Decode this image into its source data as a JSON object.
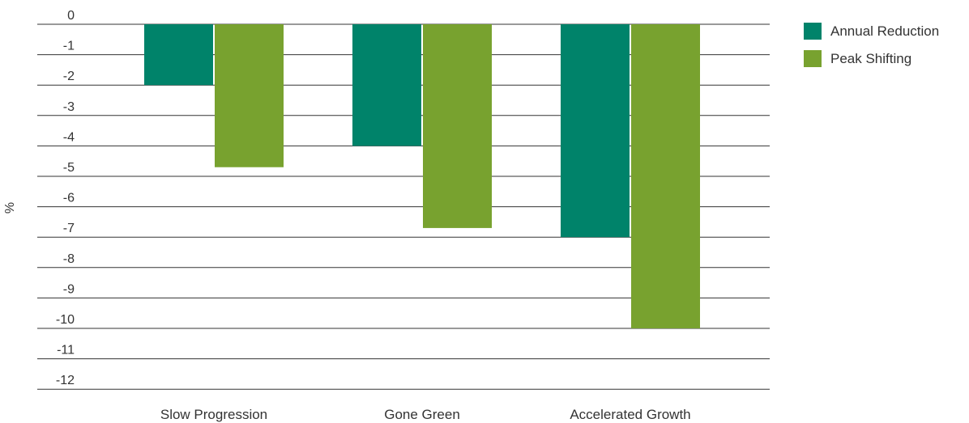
{
  "chart_data": {
    "type": "bar",
    "categories": [
      "Slow Progression",
      "Gone Green",
      "Accelerated Growth"
    ],
    "series": [
      {
        "name": "Annual Reduction",
        "values": [
          -2,
          -4,
          -7
        ],
        "color": "#00836a"
      },
      {
        "name": "Peak Shifting",
        "values": [
          -4.7,
          -6.7,
          -10
        ],
        "color": "#78a22f"
      }
    ],
    "ylabel": "%",
    "xlabel": "",
    "ylim": [
      -12,
      0
    ],
    "yticks": [
      "0",
      "-1",
      "-2",
      "-3",
      "-4",
      "-5",
      "-6",
      "-7",
      "-8",
      "-9",
      "-10",
      "-11",
      "-12"
    ],
    "grid": true,
    "legend_position": "top-right"
  }
}
